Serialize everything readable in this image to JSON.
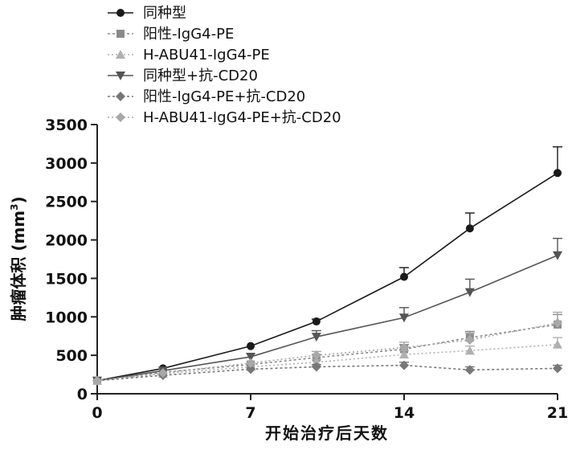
{
  "chart_data": {
    "type": "line",
    "xlabel": "开始治疗后天数",
    "ylabel": "肿瘤体积 (mm",
    "ylabel_sup": "3",
    "ylabel_close": ")",
    "xlim": [
      0,
      21
    ],
    "ylim": [
      0,
      3500
    ],
    "x_ticks": [
      0,
      7,
      14,
      21
    ],
    "y_ticks": [
      0,
      500,
      1000,
      1500,
      2000,
      2500,
      3000,
      3500
    ],
    "grid": false,
    "legend_position": "top-left",
    "x": [
      0,
      3,
      7,
      10,
      14,
      17,
      21
    ],
    "series": [
      {
        "name": "同种型",
        "color": "#1a1a1a",
        "marker": "circle",
        "dash": "",
        "values": [
          170,
          330,
          620,
          940,
          1520,
          2150,
          2870
        ],
        "errors": [
          0,
          0,
          0,
          30,
          120,
          200,
          340
        ]
      },
      {
        "name": "阳性-IgG4-PE",
        "color": "#8a8a8a",
        "marker": "square",
        "dash": "3,3",
        "values": [
          170,
          280,
          380,
          470,
          580,
          730,
          900
        ],
        "errors": [
          0,
          0,
          0,
          40,
          60,
          80,
          130
        ]
      },
      {
        "name": "H-ABU41-IgG4-PE",
        "color": "#b0b0b0",
        "marker": "triangle-up",
        "dash": "2,3",
        "values": [
          170,
          260,
          350,
          410,
          510,
          560,
          640
        ],
        "errors": [
          0,
          0,
          0,
          30,
          50,
          60,
          90
        ]
      },
      {
        "name": "同种型+抗-CD20",
        "color": "#555555",
        "marker": "triangle-down",
        "dash": "",
        "values": [
          170,
          300,
          480,
          740,
          990,
          1320,
          1800
        ],
        "errors": [
          0,
          0,
          0,
          80,
          130,
          170,
          220
        ]
      },
      {
        "name": "阳性-IgG4-PE+抗-CD20",
        "color": "#777777",
        "marker": "diamond",
        "dash": "3,3",
        "values": [
          170,
          240,
          320,
          350,
          370,
          310,
          330
        ],
        "errors": [
          0,
          0,
          0,
          30,
          40,
          40,
          40
        ]
      },
      {
        "name": "H-ABU41-IgG4-PE+抗-CD20",
        "color": "#a8a8a8",
        "marker": "diamond",
        "dash": "2,3",
        "values": [
          170,
          270,
          400,
          500,
          600,
          700,
          920
        ],
        "errors": [
          0,
          0,
          0,
          50,
          70,
          90,
          140
        ]
      }
    ]
  }
}
